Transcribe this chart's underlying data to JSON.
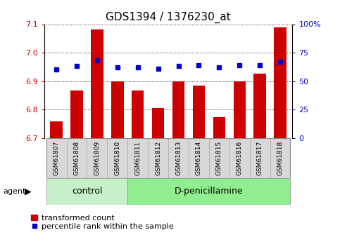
{
  "title": "GDS1394 / 1376230_at",
  "categories": [
    "GSM61807",
    "GSM61808",
    "GSM61809",
    "GSM61810",
    "GSM61811",
    "GSM61812",
    "GSM61813",
    "GSM61814",
    "GSM61815",
    "GSM61816",
    "GSM61817",
    "GSM61818"
  ],
  "transformed_count": [
    6.758,
    6.868,
    7.082,
    6.9,
    6.868,
    6.805,
    6.9,
    6.885,
    6.773,
    6.9,
    6.925,
    7.09
  ],
  "percentile_rank": [
    60,
    63,
    68,
    62,
    62,
    61,
    63,
    64,
    62,
    64,
    64,
    67
  ],
  "ylim_left": [
    6.7,
    7.1
  ],
  "ylim_right": [
    0,
    100
  ],
  "yticks_left": [
    6.7,
    6.8,
    6.9,
    7.0,
    7.1
  ],
  "yticks_right": [
    0,
    25,
    50,
    75,
    100
  ],
  "ytick_labels_right": [
    "0",
    "25",
    "50",
    "75",
    "100%"
  ],
  "bar_color": "#cc0000",
  "dot_color": "#0000cc",
  "bar_width": 0.6,
  "control_indices": [
    0,
    1,
    2,
    3
  ],
  "dpenicillamine_indices": [
    4,
    5,
    6,
    7,
    8,
    9,
    10,
    11
  ],
  "control_label": "control",
  "treatment_label": "D-penicillamine",
  "agent_label": "agent",
  "legend_bar_label": "transformed count",
  "legend_dot_label": "percentile rank within the sample",
  "group_bg_control": "#c8f0c8",
  "group_bg_treatment": "#90ee90",
  "tick_label_bg": "#d8d8d8",
  "title_fontsize": 11,
  "axis_fontsize": 8,
  "legend_fontsize": 8,
  "figsize": [
    4.83,
    3.45
  ],
  "dpi": 100
}
